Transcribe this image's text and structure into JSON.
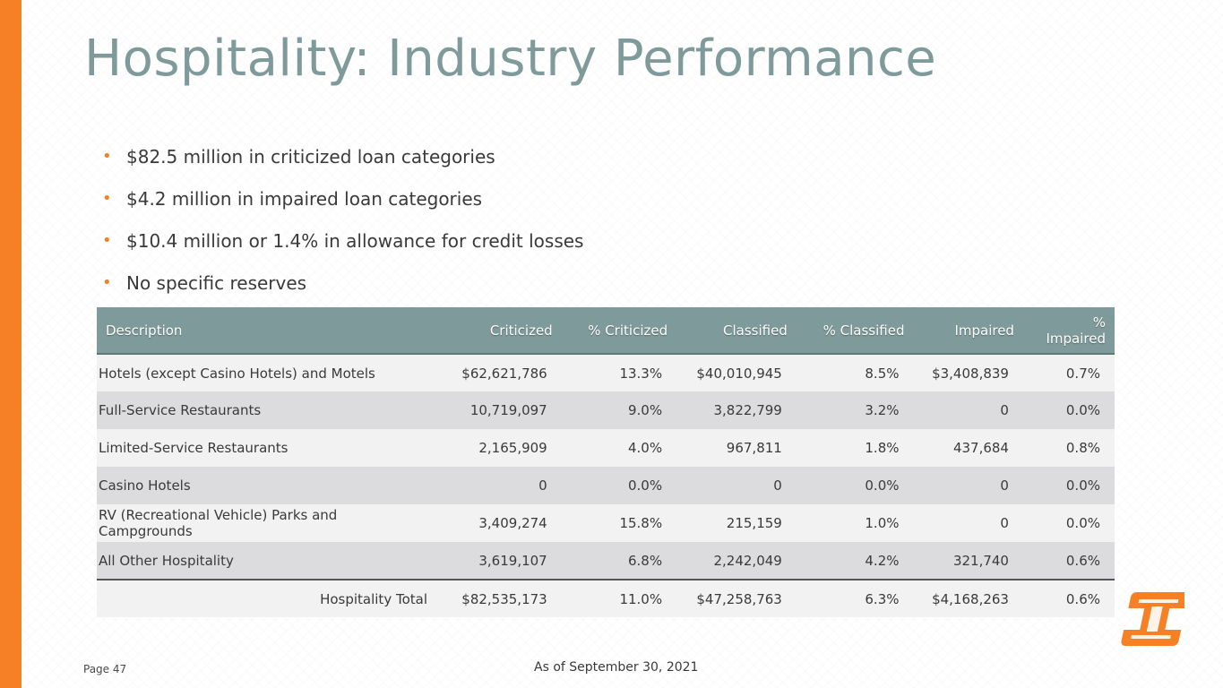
{
  "slide": {
    "title": "Hospitality: Industry Performance",
    "bullets": [
      "$82.5 million in criticized loan categories",
      "$4.2 million in impaired loan categories",
      "$10.4 million or 1.4% in allowance for credit losses",
      "No specific reserves"
    ],
    "bullet_glyph": "•"
  },
  "table": {
    "headers": {
      "description": "Description",
      "criticized": "Criticized",
      "pct_criticized": "% Criticized",
      "classified": "Classified",
      "pct_classified": "% Classified",
      "impaired": "Impaired",
      "pct_impaired_1": "%",
      "pct_impaired_2": "Impaired"
    },
    "rows": [
      {
        "description": "Hotels (except Casino Hotels) and Motels",
        "criticized": "$62,621,786",
        "pct_criticized": "13.3%",
        "classified": "$40,010,945",
        "pct_classified": "8.5%",
        "impaired": "$3,408,839",
        "pct_impaired": "0.7%"
      },
      {
        "description": "Full-Service Restaurants",
        "criticized": "10,719,097",
        "pct_criticized": "9.0%",
        "classified": "3,822,799",
        "pct_classified": "3.2%",
        "impaired": "0",
        "pct_impaired": "0.0%"
      },
      {
        "description": "Limited-Service Restaurants",
        "criticized": "2,165,909",
        "pct_criticized": "4.0%",
        "classified": "967,811",
        "pct_classified": "1.8%",
        "impaired": "437,684",
        "pct_impaired": "0.8%"
      },
      {
        "description": "Casino Hotels",
        "criticized": "0",
        "pct_criticized": "0.0%",
        "classified": "0",
        "pct_classified": "0.0%",
        "impaired": "0",
        "pct_impaired": "0.0%"
      },
      {
        "description_1": "RV (Recreational Vehicle) Parks and",
        "description_2": "Campgrounds",
        "criticized": "3,409,274",
        "pct_criticized": "15.8%",
        "classified": "215,159",
        "pct_classified": "1.0%",
        "impaired": "0",
        "pct_impaired": "0.0%"
      },
      {
        "description": "All Other Hospitality",
        "criticized": "3,619,107",
        "pct_criticized": "6.8%",
        "classified": "2,242,049",
        "pct_classified": "4.2%",
        "impaired": "321,740",
        "pct_impaired": "0.6%"
      }
    ],
    "total": {
      "label": "Hospitality Total",
      "criticized": "$82,535,173",
      "pct_criticized": "11.0%",
      "classified": "$47,258,763",
      "pct_classified": "6.3%",
      "impaired": "$4,168,263",
      "pct_impaired": "0.6%"
    }
  },
  "footer": {
    "page": "Page 47",
    "as_of": "As of September 30, 2021"
  },
  "colors": {
    "accent_orange": "#f58025",
    "title_gray": "#7f9a9a",
    "header_bg": "#7f9a9a"
  },
  "logo": {
    "icon": "company-logo-icon"
  }
}
